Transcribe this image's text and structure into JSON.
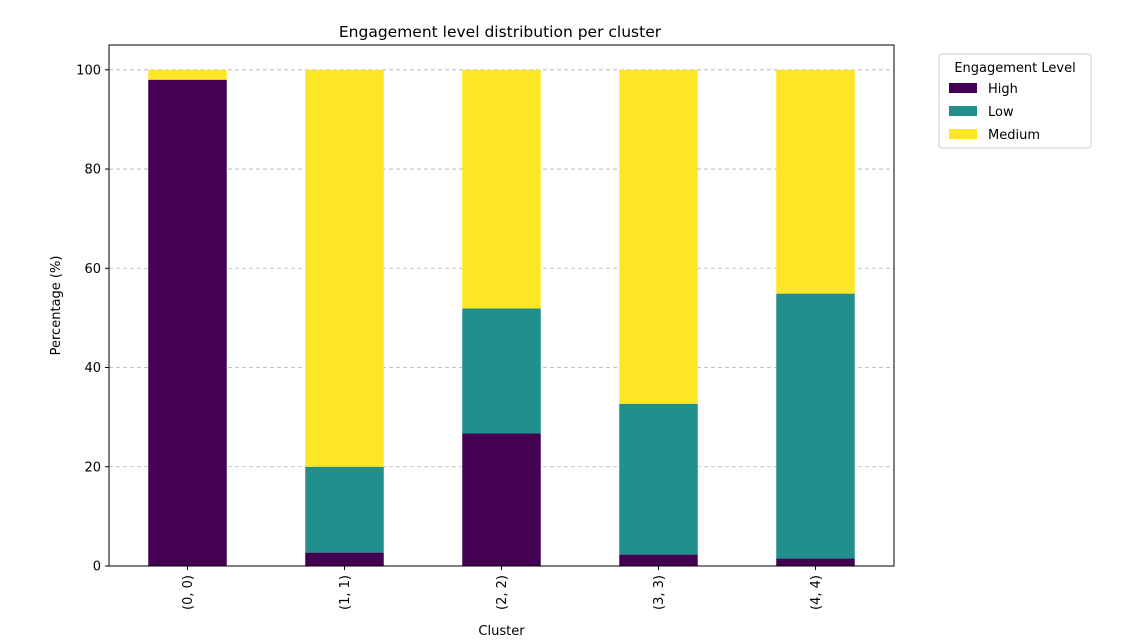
{
  "chart_data": {
    "type": "bar",
    "stacked": true,
    "title": "Engagement level distribution per cluster",
    "xlabel": "Cluster",
    "ylabel": "Percentage (%)",
    "categories": [
      "(0, 0)",
      "(1, 1)",
      "(2, 2)",
      "(3, 3)",
      "(4, 4)"
    ],
    "series": [
      {
        "name": "High",
        "color": "#440154",
        "values": [
          98.0,
          2.7,
          26.7,
          2.3,
          1.5
        ]
      },
      {
        "name": "Low",
        "color": "#21908d",
        "values": [
          0.0,
          17.3,
          25.2,
          30.4,
          53.4
        ]
      },
      {
        "name": "Medium",
        "color": "#fde725",
        "values": [
          2.0,
          80.0,
          48.1,
          67.3,
          45.1
        ]
      }
    ],
    "ylim": [
      0,
      105
    ],
    "yticks": [
      0,
      20,
      40,
      60,
      80,
      100
    ],
    "grid": {
      "axis": "y",
      "style": "dashed"
    },
    "legend": {
      "title": "Engagement Level",
      "placement": "outside-top-right"
    }
  }
}
